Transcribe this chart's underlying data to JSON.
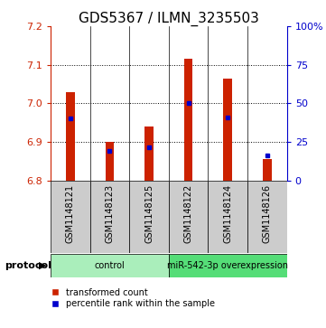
{
  "title": "GDS5367 / ILMN_3235503",
  "samples": [
    "GSM1148121",
    "GSM1148123",
    "GSM1148125",
    "GSM1148122",
    "GSM1148124",
    "GSM1148126"
  ],
  "red_tops": [
    7.03,
    6.9,
    6.94,
    7.115,
    7.065,
    6.855
  ],
  "blue_values": [
    6.962,
    6.876,
    6.887,
    7.0,
    6.963,
    6.864
  ],
  "ylim_left": [
    6.8,
    7.2
  ],
  "ylim_right": [
    0,
    100
  ],
  "yticks_left": [
    6.8,
    6.9,
    7.0,
    7.1,
    7.2
  ],
  "yticks_right": [
    0,
    25,
    50,
    75,
    100
  ],
  "ytick_labels_right": [
    "0",
    "25",
    "50",
    "75",
    "100%"
  ],
  "bar_bottom": 6.8,
  "red_color": "#cc2200",
  "blue_color": "#0000cc",
  "bar_bg_color": "#cccccc",
  "protocol_groups": [
    {
      "label": "control",
      "indices": [
        0,
        1,
        2
      ],
      "color": "#aaeebb"
    },
    {
      "label": "miR-542-3p overexpression",
      "indices": [
        3,
        4,
        5
      ],
      "color": "#55dd77"
    }
  ],
  "legend_red": "transformed count",
  "legend_blue": "percentile rank within the sample",
  "protocol_label": "protocol",
  "title_fontsize": 11,
  "tick_fontsize": 8,
  "sample_fontsize": 7
}
